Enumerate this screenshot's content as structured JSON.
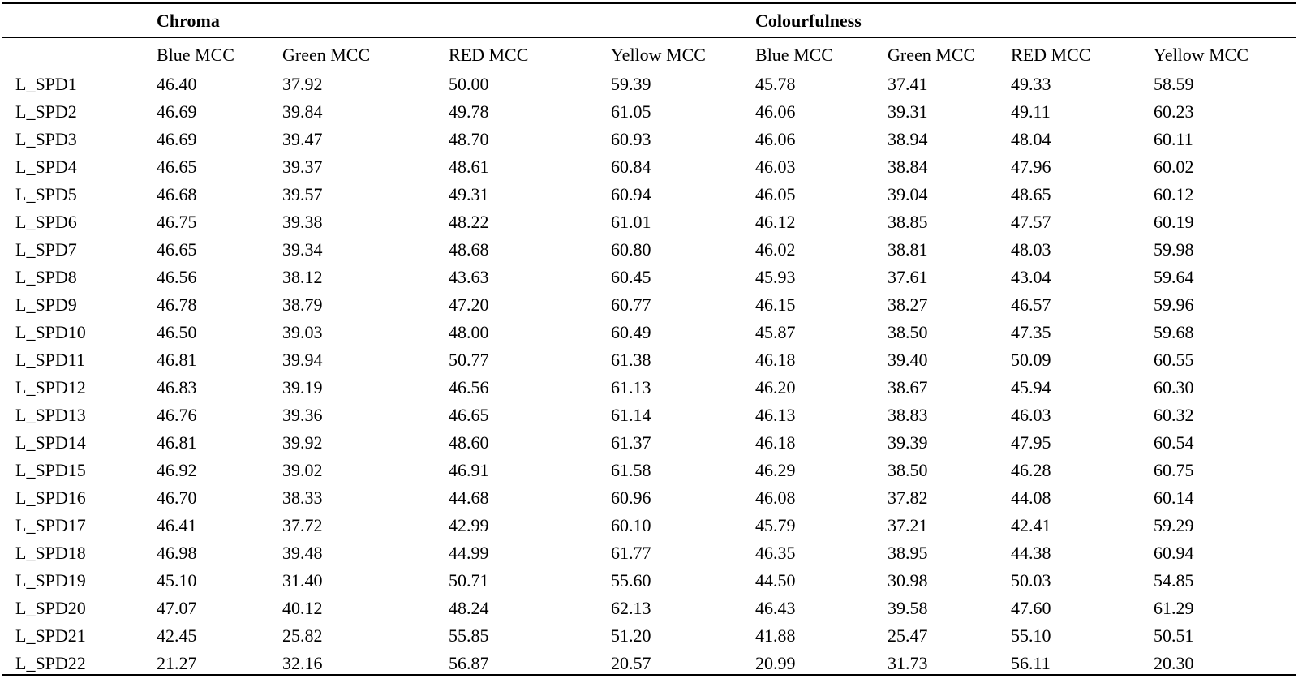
{
  "table": {
    "groups": [
      "Chroma",
      "Colourfulness"
    ],
    "columns": [
      "Blue MCC",
      "Green MCC",
      "RED MCC",
      "Yellow MCC",
      "Blue MCC",
      "Green MCC",
      "RED MCC",
      "Yellow MCC"
    ],
    "rows": [
      [
        "L_SPD1",
        "46.40",
        "37.92",
        "50.00",
        "59.39",
        "45.78",
        "37.41",
        "49.33",
        "58.59"
      ],
      [
        "L_SPD2",
        "46.69",
        "39.84",
        "49.78",
        "61.05",
        "46.06",
        "39.31",
        "49.11",
        "60.23"
      ],
      [
        "L_SPD3",
        "46.69",
        "39.47",
        "48.70",
        "60.93",
        "46.06",
        "38.94",
        "48.04",
        "60.11"
      ],
      [
        "L_SPD4",
        "46.65",
        "39.37",
        "48.61",
        "60.84",
        "46.03",
        "38.84",
        "47.96",
        "60.02"
      ],
      [
        "L_SPD5",
        "46.68",
        "39.57",
        "49.31",
        "60.94",
        "46.05",
        "39.04",
        "48.65",
        "60.12"
      ],
      [
        "L_SPD6",
        "46.75",
        "39.38",
        "48.22",
        "61.01",
        "46.12",
        "38.85",
        "47.57",
        "60.19"
      ],
      [
        "L_SPD7",
        "46.65",
        "39.34",
        "48.68",
        "60.80",
        "46.02",
        "38.81",
        "48.03",
        "59.98"
      ],
      [
        "L_SPD8",
        "46.56",
        "38.12",
        "43.63",
        "60.45",
        "45.93",
        "37.61",
        "43.04",
        "59.64"
      ],
      [
        "L_SPD9",
        "46.78",
        "38.79",
        "47.20",
        "60.77",
        "46.15",
        "38.27",
        "46.57",
        "59.96"
      ],
      [
        "L_SPD10",
        "46.50",
        "39.03",
        "48.00",
        "60.49",
        "45.87",
        "38.50",
        "47.35",
        "59.68"
      ],
      [
        "L_SPD11",
        "46.81",
        "39.94",
        "50.77",
        "61.38",
        "46.18",
        "39.40",
        "50.09",
        "60.55"
      ],
      [
        "L_SPD12",
        "46.83",
        "39.19",
        "46.56",
        "61.13",
        "46.20",
        "38.67",
        "45.94",
        "60.30"
      ],
      [
        "L_SPD13",
        "46.76",
        "39.36",
        "46.65",
        "61.14",
        "46.13",
        "38.83",
        "46.03",
        "60.32"
      ],
      [
        "L_SPD14",
        "46.81",
        "39.92",
        "48.60",
        "61.37",
        "46.18",
        "39.39",
        "47.95",
        "60.54"
      ],
      [
        "L_SPD15",
        "46.92",
        "39.02",
        "46.91",
        "61.58",
        "46.29",
        "38.50",
        "46.28",
        "60.75"
      ],
      [
        "L_SPD16",
        "46.70",
        "38.33",
        "44.68",
        "60.96",
        "46.08",
        "37.82",
        "44.08",
        "60.14"
      ],
      [
        "L_SPD17",
        "46.41",
        "37.72",
        "42.99",
        "60.10",
        "45.79",
        "37.21",
        "42.41",
        "59.29"
      ],
      [
        "L_SPD18",
        "46.98",
        "39.48",
        "44.99",
        "61.77",
        "46.35",
        "38.95",
        "44.38",
        "60.94"
      ],
      [
        "L_SPD19",
        "45.10",
        "31.40",
        "50.71",
        "55.60",
        "44.50",
        "30.98",
        "50.03",
        "54.85"
      ],
      [
        "L_SPD20",
        "47.07",
        "40.12",
        "48.24",
        "62.13",
        "46.43",
        "39.58",
        "47.60",
        "61.29"
      ],
      [
        "L_SPD21",
        "42.45",
        "25.82",
        "55.85",
        "51.20",
        "41.88",
        "25.47",
        "55.10",
        "50.51"
      ],
      [
        "L_SPD22",
        "21.27",
        "32.16",
        "56.87",
        "20.57",
        "20.99",
        "31.73",
        "56.11",
        "20.30"
      ]
    ]
  }
}
